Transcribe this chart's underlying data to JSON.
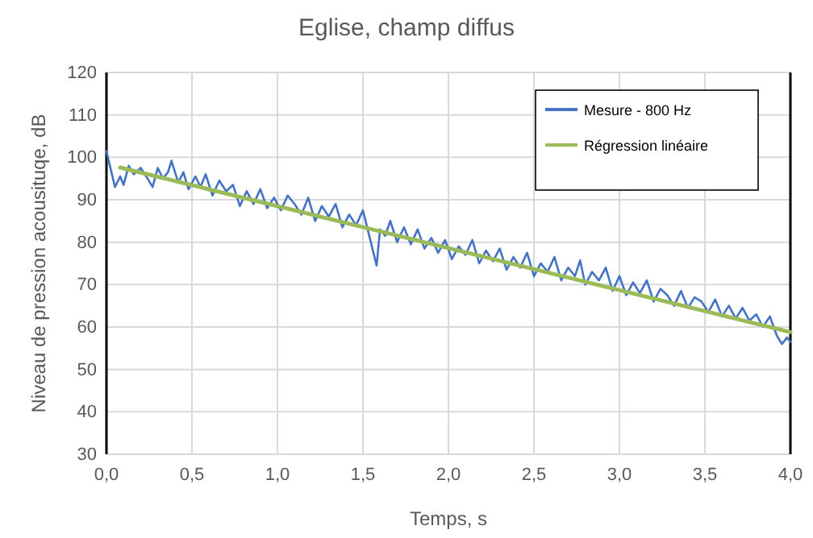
{
  "chart_data": {
    "type": "line",
    "title": "Eglise, champ diffus",
    "xlabel": "Temps, s",
    "ylabel": "Niveau de pression acousituqe, dB",
    "xlim": [
      0,
      4
    ],
    "xticks": [
      {
        "value": 0,
        "label": "0,0"
      },
      {
        "value": 0.5,
        "label": "0,5"
      },
      {
        "value": 1,
        "label": "1,0"
      },
      {
        "value": 1.5,
        "label": "1,5"
      },
      {
        "value": 2,
        "label": "2,0"
      },
      {
        "value": 2.5,
        "label": "2,5"
      },
      {
        "value": 3,
        "label": "3,0"
      },
      {
        "value": 3.5,
        "label": "3,5"
      },
      {
        "value": 4,
        "label": "4,0"
      }
    ],
    "ylim": [
      30,
      120
    ],
    "yticks": [
      30,
      40,
      50,
      60,
      70,
      80,
      90,
      100,
      110,
      120
    ],
    "grid": true,
    "legend": "top right",
    "marker": "none",
    "line_style": "solid",
    "series": [
      {
        "name": "Mesure - 800 Hz",
        "color": "#4472c4",
        "x": [
          0,
          0.02,
          0.05,
          0.08,
          0.1,
          0.13,
          0.16,
          0.2,
          0.24,
          0.27,
          0.3,
          0.33,
          0.36,
          0.38,
          0.42,
          0.45,
          0.48,
          0.52,
          0.55,
          0.58,
          0.62,
          0.66,
          0.7,
          0.74,
          0.78,
          0.82,
          0.86,
          0.9,
          0.94,
          0.98,
          1.02,
          1.06,
          1.1,
          1.14,
          1.18,
          1.22,
          1.26,
          1.3,
          1.34,
          1.38,
          1.42,
          1.46,
          1.5,
          1.54,
          1.58,
          1.6,
          1.63,
          1.66,
          1.7,
          1.74,
          1.78,
          1.82,
          1.86,
          1.9,
          1.94,
          1.98,
          2.02,
          2.06,
          2.1,
          2.14,
          2.18,
          2.22,
          2.26,
          2.3,
          2.34,
          2.38,
          2.42,
          2.46,
          2.5,
          2.54,
          2.58,
          2.62,
          2.66,
          2.7,
          2.74,
          2.77,
          2.8,
          2.84,
          2.88,
          2.92,
          2.96,
          3.0,
          3.04,
          3.08,
          3.12,
          3.16,
          3.2,
          3.24,
          3.28,
          3.32,
          3.36,
          3.4,
          3.44,
          3.48,
          3.52,
          3.56,
          3.6,
          3.64,
          3.68,
          3.72,
          3.76,
          3.8,
          3.84,
          3.88,
          3.92,
          3.95,
          3.98,
          4.0
        ],
        "values": [
          101.5,
          98,
          93,
          95.5,
          93.5,
          98,
          96,
          97.5,
          95,
          93,
          97.5,
          95,
          96.5,
          99.2,
          94,
          96.5,
          92.5,
          95.5,
          93,
          96,
          91,
          94.5,
          92,
          93.5,
          88.5,
          92,
          89,
          92.5,
          88,
          90.5,
          87.5,
          91,
          89,
          86.5,
          90.5,
          85,
          88.5,
          86,
          89,
          83.5,
          86.5,
          84,
          87.5,
          81,
          74.5,
          83,
          81.5,
          85,
          80,
          83.5,
          79.5,
          83,
          78.5,
          81,
          77.5,
          80.5,
          76,
          79,
          77,
          80.5,
          75,
          78,
          75.5,
          78.5,
          73.5,
          76.5,
          74,
          77.5,
          72,
          75,
          73,
          76.5,
          71,
          74,
          72,
          75.7,
          70,
          73,
          71,
          74,
          68.5,
          72,
          67.5,
          70.5,
          68,
          71,
          66,
          69,
          67.5,
          65,
          68.5,
          64.5,
          67,
          66,
          63.5,
          66.5,
          62.5,
          65,
          62,
          64.5,
          61.5,
          63,
          60,
          62.5,
          58,
          56,
          57.5,
          56.5
        ]
      },
      {
        "name": "Régression linéaire",
        "color": "#9bbb59",
        "x": [
          0.08,
          4.0
        ],
        "values": [
          97.6,
          58.8
        ]
      }
    ]
  }
}
